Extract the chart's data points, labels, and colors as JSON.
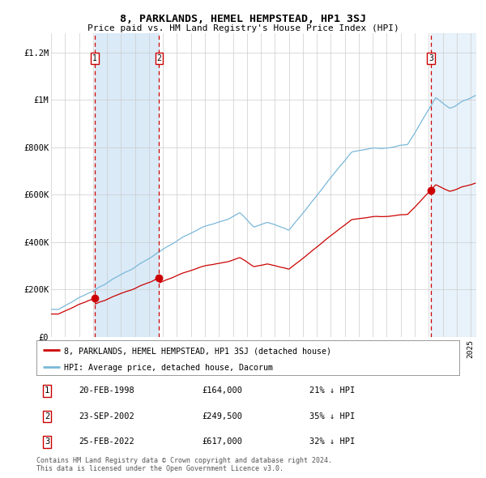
{
  "title": "8, PARKLANDS, HEMEL HEMPSTEAD, HP1 3SJ",
  "subtitle": "Price paid vs. HM Land Registry's House Price Index (HPI)",
  "hpi_label": "HPI: Average price, detached house, Dacorum",
  "price_label": "8, PARKLANDS, HEMEL HEMPSTEAD, HP1 3SJ (detached house)",
  "transactions": [
    {
      "num": 1,
      "date": "20-FEB-1998",
      "price": 164000,
      "pct": "21% ↓ HPI",
      "year": 1998.13
    },
    {
      "num": 2,
      "date": "23-SEP-2002",
      "price": 249500,
      "pct": "35% ↓ HPI",
      "year": 2002.73
    },
    {
      "num": 3,
      "date": "25-FEB-2022",
      "price": 617000,
      "pct": "32% ↓ HPI",
      "year": 2022.15
    }
  ],
  "ylim": [
    0,
    1280000
  ],
  "yticks": [
    0,
    200000,
    400000,
    600000,
    800000,
    1000000,
    1200000
  ],
  "ytick_labels": [
    "£0",
    "£200K",
    "£400K",
    "£600K",
    "£800K",
    "£1M",
    "£1.2M"
  ],
  "hpi_color": "#7ab8d9",
  "price_color": "#cc0000",
  "shade_color": "#daeaf7",
  "grid_color": "#cccccc",
  "dashed_color": "#cc0000",
  "background_color": "#ffffff",
  "footer": "Contains HM Land Registry data © Crown copyright and database right 2024.\nThis data is licensed under the Open Government Licence v3.0."
}
